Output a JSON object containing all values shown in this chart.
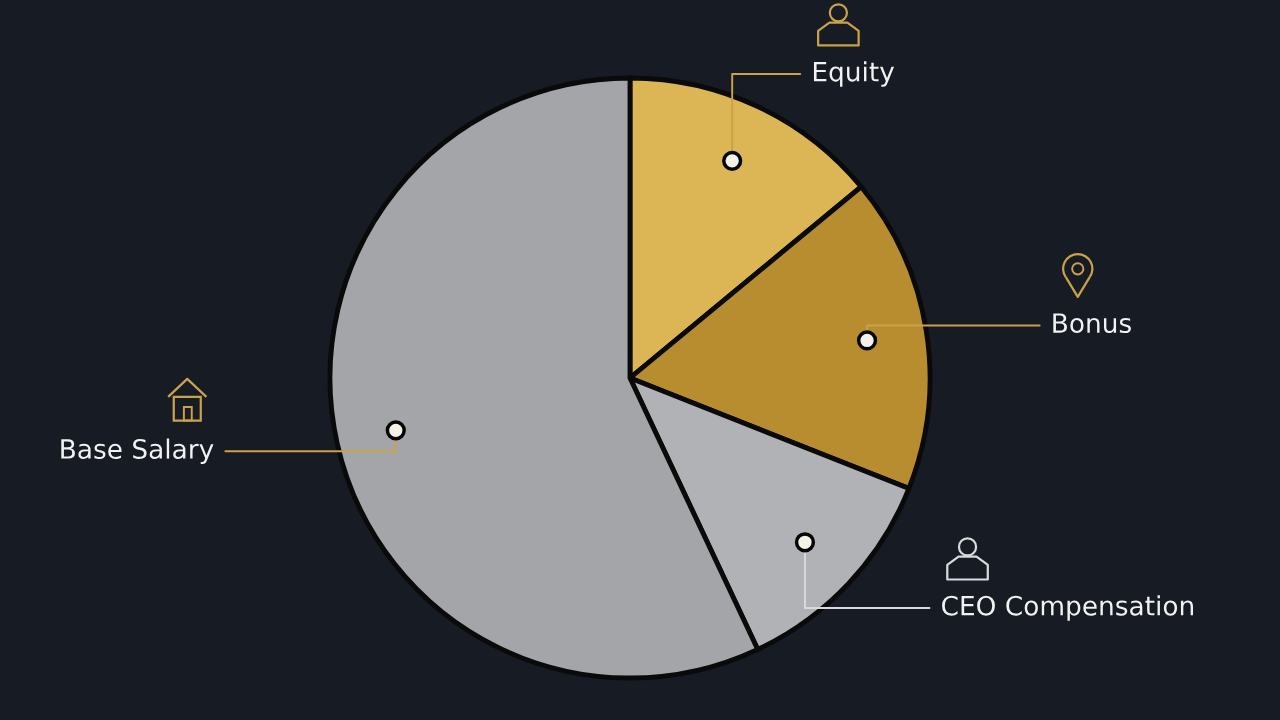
{
  "chart_data": {
    "type": "pie",
    "categories": [
      "Equity",
      "Bonus",
      "CEO Compensation",
      "Base Salary"
    ],
    "values": [
      14,
      17,
      12,
      57
    ],
    "colors": [
      "#dcb555",
      "#b88d30",
      "#b0b2b5",
      "#a3a5a9"
    ]
  }
}
